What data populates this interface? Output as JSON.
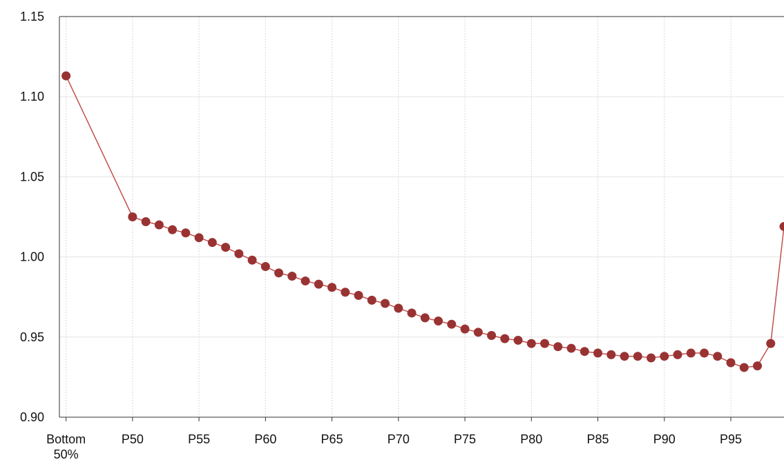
{
  "chart_data": {
    "type": "line",
    "x": [
      45,
      50,
      51,
      52,
      53,
      54,
      55,
      56,
      57,
      58,
      59,
      60,
      61,
      62,
      63,
      64,
      65,
      66,
      67,
      68,
      69,
      70,
      71,
      72,
      73,
      74,
      75,
      76,
      77,
      78,
      79,
      80,
      81,
      82,
      83,
      84,
      85,
      86,
      87,
      88,
      89,
      90,
      91,
      92,
      93,
      94,
      95,
      96,
      97,
      98,
      99
    ],
    "series": [
      {
        "color": "#993333",
        "line_color": "#c0504d",
        "values": [
          1.113,
          1.025,
          1.022,
          1.02,
          1.017,
          1.015,
          1.012,
          1.009,
          1.006,
          1.002,
          0.998,
          0.994,
          0.99,
          0.988,
          0.985,
          0.983,
          0.981,
          0.978,
          0.976,
          0.973,
          0.971,
          0.968,
          0.965,
          0.962,
          0.96,
          0.958,
          0.955,
          0.953,
          0.951,
          0.949,
          0.948,
          0.946,
          0.946,
          0.944,
          0.943,
          0.941,
          0.94,
          0.939,
          0.938,
          0.938,
          0.937,
          0.938,
          0.939,
          0.94,
          0.94,
          0.938,
          0.934,
          0.931,
          0.932,
          0.946,
          1.019
        ]
      }
    ],
    "xlim": [
      44.5,
      99
    ],
    "xticks": [
      {
        "value": 45,
        "label": "Bottom 50%"
      },
      {
        "value": 50,
        "label": "P50"
      },
      {
        "value": 55,
        "label": "P55"
      },
      {
        "value": 60,
        "label": "P60"
      },
      {
        "value": 65,
        "label": "P65"
      },
      {
        "value": 70,
        "label": "P70"
      },
      {
        "value": 75,
        "label": "P75"
      },
      {
        "value": 80,
        "label": "P80"
      },
      {
        "value": 85,
        "label": "P85"
      },
      {
        "value": 90,
        "label": "P90"
      },
      {
        "value": 95,
        "label": "P95"
      }
    ],
    "ylim": [
      0.9,
      1.15
    ],
    "yticks": [
      {
        "value": 0.9,
        "label": "0.90"
      },
      {
        "value": 0.95,
        "label": "0.95"
      },
      {
        "value": 1.0,
        "label": "1.00"
      },
      {
        "value": 1.05,
        "label": "1.05"
      },
      {
        "value": 1.1,
        "label": "1.10"
      },
      {
        "value": 1.15,
        "label": "1.15"
      }
    ],
    "grid": true
  }
}
